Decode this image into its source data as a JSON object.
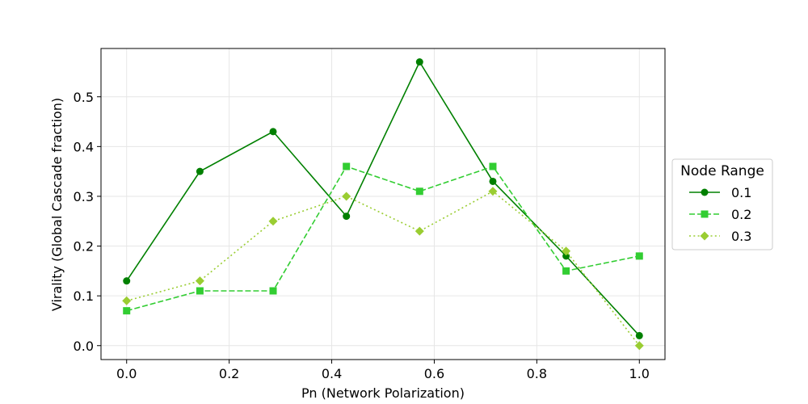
{
  "chart_data": {
    "type": "line",
    "title": "",
    "xlabel": "Pn (Network Polarization)",
    "ylabel": "Virality (Global Cascade fraction)",
    "xlim": [
      -0.05,
      1.05
    ],
    "ylim": [
      -0.028,
      0.597
    ],
    "x_ticks": [
      0.0,
      0.2,
      0.4,
      0.6,
      0.8,
      1.0
    ],
    "x_tick_labels": [
      "0.0",
      "0.2",
      "0.4",
      "0.6",
      "0.8",
      "1.0"
    ],
    "y_ticks": [
      0.0,
      0.1,
      0.2,
      0.3,
      0.4,
      0.5
    ],
    "y_tick_labels": [
      "0.0",
      "0.1",
      "0.2",
      "0.3",
      "0.4",
      "0.5"
    ],
    "grid": true,
    "legend": {
      "title": "Node Range",
      "placement": "right-outside"
    },
    "x": [
      0.0,
      0.1429,
      0.2857,
      0.4286,
      0.5714,
      0.7143,
      0.8571,
      1.0
    ],
    "series": [
      {
        "name": "0.1",
        "values": [
          0.13,
          0.35,
          0.43,
          0.26,
          0.57,
          0.33,
          0.18,
          0.02
        ],
        "color": "#008000",
        "linestyle": "solid",
        "marker": "circle"
      },
      {
        "name": "0.2",
        "values": [
          0.07,
          0.11,
          0.11,
          0.36,
          0.31,
          0.36,
          0.15,
          0.18
        ],
        "color": "#32cd32",
        "linestyle": "dashed",
        "marker": "square"
      },
      {
        "name": "0.3",
        "values": [
          0.09,
          0.13,
          0.25,
          0.3,
          0.23,
          0.31,
          0.19,
          0.0
        ],
        "color": "#9acd32",
        "linestyle": "dotted",
        "marker": "diamond"
      }
    ]
  }
}
